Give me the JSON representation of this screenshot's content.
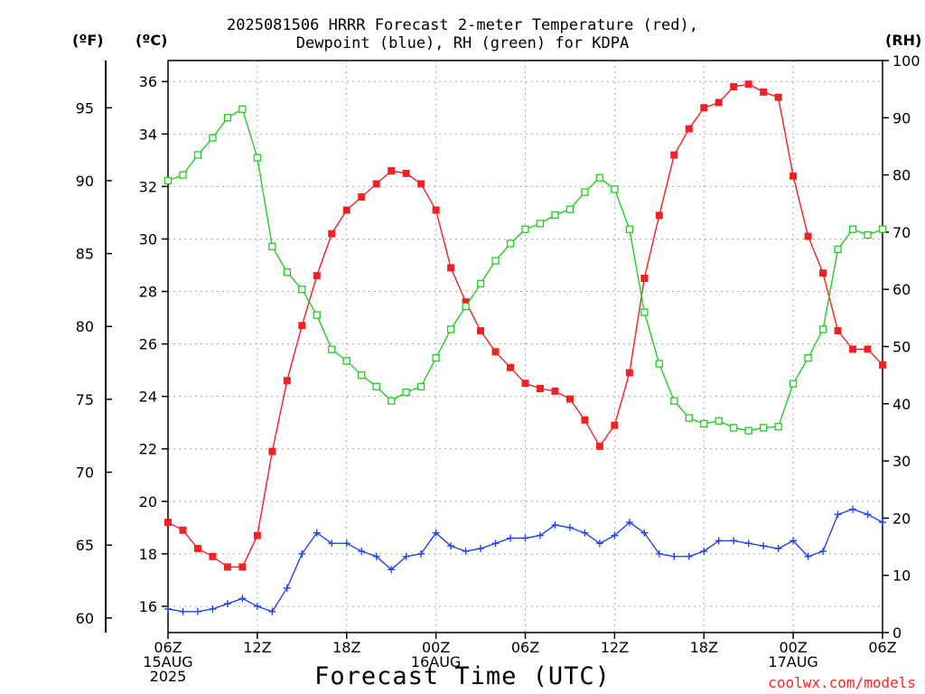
{
  "title": {
    "line1": "2025081506 HRRR Forecast 2-meter Temperature (red),",
    "line2": "Dewpoint (blue), RH (green) for KDPA"
  },
  "units": {
    "fahrenheit": "(ºF)",
    "celsius": "(ºC)",
    "rh": "(RH)"
  },
  "xlabel": "Forecast Time (UTC)",
  "credit": "coolwx.com/models",
  "chart_data": {
    "type": "line",
    "title": "2025081506 HRRR Forecast 2-meter Temperature (red), Dewpoint (blue), RH (green) for KDPA",
    "xlabel": "Forecast Time (UTC)",
    "x_hours": [
      0,
      1,
      2,
      3,
      4,
      5,
      6,
      7,
      8,
      9,
      10,
      11,
      12,
      13,
      14,
      15,
      16,
      17,
      18,
      19,
      20,
      21,
      22,
      23,
      24,
      25,
      26,
      27,
      28,
      29,
      30,
      31,
      32,
      33,
      34,
      35,
      36,
      37,
      38,
      39,
      40,
      41,
      42,
      43,
      44,
      45,
      46,
      47,
      48
    ],
    "x_ticks": [
      {
        "hour": 0,
        "lines": [
          "06Z",
          "15AUG",
          "2025"
        ]
      },
      {
        "hour": 6,
        "lines": [
          "12Z"
        ]
      },
      {
        "hour": 12,
        "lines": [
          "18Z"
        ]
      },
      {
        "hour": 18,
        "lines": [
          "00Z",
          "16AUG"
        ]
      },
      {
        "hour": 24,
        "lines": [
          "06Z"
        ]
      },
      {
        "hour": 30,
        "lines": [
          "12Z"
        ]
      },
      {
        "hour": 36,
        "lines": [
          "18Z"
        ]
      },
      {
        "hour": 42,
        "lines": [
          "00Z",
          "17AUG"
        ]
      },
      {
        "hour": 48,
        "lines": [
          "06Z"
        ]
      }
    ],
    "y_celsius": {
      "range": [
        15.0,
        36.8
      ],
      "ticks": [
        16,
        18,
        20,
        22,
        24,
        26,
        28,
        30,
        32,
        34,
        36
      ]
    },
    "y_fahrenheit": {
      "ticks": [
        60,
        65,
        70,
        75,
        80,
        85,
        90,
        95
      ]
    },
    "y_rh": {
      "range": [
        0,
        100
      ],
      "ticks": [
        0,
        10,
        20,
        30,
        40,
        50,
        60,
        70,
        80,
        90,
        100
      ]
    },
    "grid": true,
    "series": [
      {
        "name": "Temperature (red)",
        "axis": "celsius",
        "color": "#ee2222",
        "marker": "filled-square",
        "values": [
          19.2,
          18.9,
          18.2,
          17.9,
          17.5,
          17.5,
          18.7,
          21.9,
          24.6,
          26.7,
          28.6,
          30.2,
          31.1,
          31.6,
          32.1,
          32.6,
          32.5,
          32.1,
          31.1,
          28.9,
          27.6,
          26.5,
          25.7,
          25.1,
          24.5,
          24.3,
          24.2,
          23.9,
          23.1,
          22.1,
          22.9,
          24.9,
          28.5,
          30.9,
          33.2,
          34.2,
          35.0,
          35.2,
          35.8,
          35.9,
          35.6,
          35.4,
          32.4,
          30.1,
          28.7,
          26.5,
          25.8,
          25.8,
          25.2
        ]
      },
      {
        "name": "Dewpoint (blue)",
        "axis": "celsius",
        "color": "#2244ee",
        "marker": "plus",
        "values": [
          15.9,
          15.8,
          15.8,
          15.9,
          16.1,
          16.3,
          16.0,
          15.8,
          16.7,
          18.0,
          18.8,
          18.4,
          18.4,
          18.1,
          17.9,
          17.4,
          17.9,
          18.0,
          18.8,
          18.3,
          18.1,
          18.2,
          18.4,
          18.6,
          18.6,
          18.7,
          19.1,
          19.0,
          18.8,
          18.4,
          18.7,
          19.2,
          18.8,
          18.0,
          17.9,
          17.9,
          18.1,
          18.5,
          18.5,
          18.4,
          18.3,
          18.2,
          18.5,
          17.9,
          18.1,
          19.5,
          19.7,
          19.5,
          19.2
        ]
      },
      {
        "name": "RH (green)",
        "axis": "rh",
        "color": "#22cc22",
        "marker": "open-square",
        "values": [
          79,
          80,
          83.5,
          86.5,
          90,
          91.5,
          83,
          67.5,
          63,
          60,
          55.5,
          49.5,
          47.5,
          45,
          43,
          40.5,
          42,
          43,
          48,
          53,
          57,
          61,
          65,
          68,
          70.5,
          71.5,
          73,
          74,
          77,
          79.5,
          77.5,
          70.5,
          56,
          47,
          40.5,
          37.5,
          36.5,
          37,
          35.8,
          35.3,
          35.8,
          36,
          43.5,
          48,
          53,
          67,
          70.5,
          69.5,
          70.5
        ]
      }
    ]
  }
}
